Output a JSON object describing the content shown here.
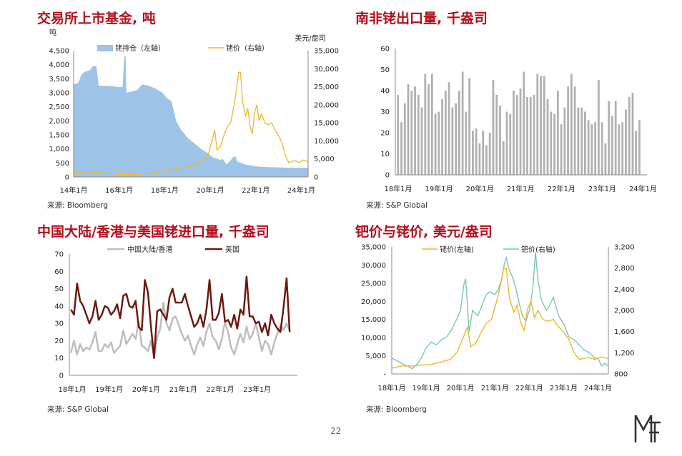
{
  "page_number": "22",
  "panels": {
    "p1": {
      "title": "交易所上市基金, 吨",
      "source": "来源: Bloomberg"
    },
    "p2": {
      "title": "南非铑出口量, 千盎司",
      "source": "来源: S&P Global"
    },
    "p3": {
      "title": "中国大陆/香港与美国铑进口量, 千盎司",
      "source": "来源: S&P Global"
    },
    "p4": {
      "title": "钯价与铑价, 美元/盎司",
      "source": "来源: Bloomberg"
    }
  },
  "chart_data": [
    {
      "type": "area+line",
      "left_unit": "吨",
      "right_unit": "美元/盘司",
      "left_ticks": [
        "0",
        "500",
        "1,000",
        "1,500",
        "2,000",
        "2,500",
        "3,000",
        "3,500",
        "4,000",
        "4,500"
      ],
      "right_ticks": [
        "0",
        "5,000",
        "10,000",
        "15,000",
        "20,000",
        "25,000",
        "30,000",
        "35,000"
      ],
      "x_ticks": [
        "14年1月",
        "16年1月",
        "18年1月",
        "20年1月",
        "22年1月",
        "24年1月"
      ],
      "ylim_left": [
        0,
        4500
      ],
      "ylim_right": [
        0,
        35000
      ],
      "xlim": [
        2014.0,
        2024.3
      ],
      "series": [
        {
          "name": "铑持仓（左轴）",
          "axis": "left",
          "color": "#9dc3e6",
          "points": [
            [
              2014.0,
              3300
            ],
            [
              2014.2,
              3350
            ],
            [
              2014.35,
              3650
            ],
            [
              2014.5,
              3750
            ],
            [
              2014.7,
              3800
            ],
            [
              2014.85,
              3950
            ],
            [
              2015.0,
              3950
            ],
            [
              2015.1,
              3250
            ],
            [
              2015.5,
              3250
            ],
            [
              2016.0,
              3200
            ],
            [
              2016.15,
              3200
            ],
            [
              2016.22,
              4300
            ],
            [
              2016.28,
              4300
            ],
            [
              2016.32,
              3000
            ],
            [
              2016.6,
              3050
            ],
            [
              2016.8,
              3100
            ],
            [
              2017.0,
              3300
            ],
            [
              2017.3,
              3250
            ],
            [
              2017.6,
              3150
            ],
            [
              2017.9,
              3000
            ],
            [
              2018.1,
              2800
            ],
            [
              2018.3,
              2700
            ],
            [
              2018.5,
              2000
            ],
            [
              2018.7,
              1700
            ],
            [
              2019.0,
              1400
            ],
            [
              2019.3,
              1200
            ],
            [
              2019.6,
              1000
            ],
            [
              2019.9,
              850
            ],
            [
              2020.1,
              700
            ],
            [
              2020.3,
              650
            ],
            [
              2020.45,
              600
            ],
            [
              2020.55,
              650
            ],
            [
              2020.7,
              450
            ],
            [
              2020.85,
              550
            ],
            [
              2021.0,
              700
            ],
            [
              2021.1,
              750
            ],
            [
              2021.2,
              550
            ],
            [
              2021.5,
              450
            ],
            [
              2022.0,
              380
            ],
            [
              2022.5,
              350
            ],
            [
              2023.0,
              340
            ],
            [
              2023.5,
              330
            ],
            [
              2024.3,
              320
            ]
          ]
        },
        {
          "name": "铑价（右轴）",
          "axis": "right",
          "color": "#f0b62c",
          "points": [
            [
              2014.0,
              1200
            ],
            [
              2014.5,
              1450
            ],
            [
              2015.0,
              1300
            ],
            [
              2015.5,
              1000
            ],
            [
              2016.0,
              700
            ],
            [
              2016.5,
              650
            ],
            [
              2017.0,
              850
            ],
            [
              2017.5,
              1100
            ],
            [
              2018.0,
              1700
            ],
            [
              2018.5,
              2300
            ],
            [
              2019.0,
              2700
            ],
            [
              2019.5,
              3800
            ],
            [
              2019.9,
              6000
            ],
            [
              2020.1,
              10500
            ],
            [
              2020.2,
              13000
            ],
            [
              2020.3,
              7500
            ],
            [
              2020.45,
              8500
            ],
            [
              2020.6,
              11500
            ],
            [
              2020.75,
              14000
            ],
            [
              2020.9,
              15000
            ],
            [
              2021.05,
              20000
            ],
            [
              2021.15,
              24000
            ],
            [
              2021.25,
              29000
            ],
            [
              2021.33,
              29000
            ],
            [
              2021.42,
              21000
            ],
            [
              2021.55,
              17000
            ],
            [
              2021.65,
              19000
            ],
            [
              2021.75,
              14000
            ],
            [
              2021.85,
              12000
            ],
            [
              2021.95,
              18000
            ],
            [
              2022.05,
              20000
            ],
            [
              2022.15,
              15500
            ],
            [
              2022.25,
              17500
            ],
            [
              2022.4,
              15000
            ],
            [
              2022.55,
              14500
            ],
            [
              2022.7,
              15000
            ],
            [
              2022.85,
              13000
            ],
            [
              2023.0,
              11500
            ],
            [
              2023.15,
              9500
            ],
            [
              2023.3,
              6000
            ],
            [
              2023.45,
              4000
            ],
            [
              2023.6,
              4300
            ],
            [
              2023.75,
              4500
            ],
            [
              2023.9,
              4000
            ],
            [
              2024.1,
              4700
            ],
            [
              2024.3,
              4200
            ]
          ]
        }
      ]
    },
    {
      "type": "bar",
      "x_ticks": [
        "18年1月",
        "19年1月",
        "20年1月",
        "21年1月",
        "22年1月",
        "23年1月",
        "24年1月"
      ],
      "y_ticks": [
        "0",
        "10",
        "20",
        "30",
        "40",
        "50",
        "60"
      ],
      "ylim": [
        0,
        60
      ],
      "start": "2018-01",
      "color": "#b0b0b0",
      "values": [
        38,
        25,
        34,
        43,
        40,
        42,
        38,
        32,
        48,
        43,
        48,
        29,
        30,
        36,
        40,
        44,
        32,
        34,
        40,
        49,
        30,
        46,
        21,
        22,
        15,
        21,
        14,
        20,
        45,
        38,
        33,
        16,
        30,
        29,
        40,
        38,
        41,
        49,
        37,
        37,
        38,
        48,
        47,
        47,
        36,
        30,
        29,
        40,
        24,
        32,
        42,
        48,
        42,
        32,
        32,
        30,
        26,
        24,
        25,
        45,
        25,
        15,
        35,
        28,
        35,
        24,
        25,
        31,
        37,
        39,
        21,
        26
      ]
    },
    {
      "type": "line",
      "x_ticks": [
        "18年1月",
        "19年1月",
        "20年1月",
        "21年1月",
        "22年1月",
        "23年1月"
      ],
      "y_ticks": [
        "0",
        "10",
        "20",
        "30",
        "40",
        "50",
        "60",
        "70"
      ],
      "ylim": [
        0,
        70
      ],
      "start": "2018-01",
      "series": [
        {
          "name": "中国大陆/香港",
          "color": "#bdbdbd",
          "values": [
            13,
            20,
            12,
            18,
            14,
            16,
            15,
            19,
            25,
            14,
            14,
            18,
            16,
            19,
            13,
            15,
            17,
            26,
            18,
            21,
            24,
            21,
            31,
            17,
            16,
            14,
            20,
            10,
            22,
            27,
            42,
            30,
            26,
            33,
            34,
            29,
            24,
            20,
            23,
            17,
            12,
            18,
            22,
            17,
            25,
            30,
            22,
            20,
            15,
            21,
            31,
            25,
            16,
            12,
            18,
            24,
            19,
            28,
            21,
            24,
            30,
            22,
            14,
            20,
            18,
            12,
            19,
            24,
            29,
            26,
            30,
            26
          ]
        },
        {
          "name": "美国",
          "color": "#6b1a12",
          "values": [
            38,
            35,
            53,
            43,
            40,
            35,
            30,
            34,
            43,
            32,
            35,
            40,
            39,
            35,
            37,
            41,
            33,
            46,
            47,
            40,
            39,
            43,
            28,
            26,
            55,
            48,
            28,
            10,
            37,
            38,
            35,
            32,
            45,
            50,
            42,
            42,
            42,
            47,
            40,
            34,
            28,
            30,
            35,
            28,
            38,
            55,
            32,
            32,
            36,
            47,
            31,
            32,
            28,
            35,
            27,
            38,
            35,
            57,
            34,
            34,
            30,
            31,
            25,
            30,
            23,
            35,
            30,
            27,
            25,
            39,
            56,
            25
          ]
        }
      ]
    },
    {
      "type": "line",
      "left_ticks": [
        "-",
        "5,000",
        "10,000",
        "15,000",
        "20,000",
        "25,000",
        "30,000",
        "35,000"
      ],
      "right_ticks": [
        "800",
        "1,200",
        "1,600",
        "2,000",
        "2,400",
        "2,800",
        "3,200"
      ],
      "x_ticks": [
        "18年1月",
        "19年1月",
        "20年1月",
        "21年1月",
        "22年1月",
        "23年1月",
        "24年1月"
      ],
      "ylim_left": [
        0,
        35000
      ],
      "ylim_right": [
        800,
        3200
      ],
      "xlim": [
        2018.0,
        2024.3
      ],
      "series": [
        {
          "name": "铑价(左轴)",
          "axis": "left",
          "color": "#f0b62c",
          "points": [
            [
              2018.0,
              1600
            ],
            [
              2018.3,
              2200
            ],
            [
              2018.6,
              2200
            ],
            [
              2018.9,
              2500
            ],
            [
              2019.1,
              2500
            ],
            [
              2019.4,
              3200
            ],
            [
              2019.7,
              4000
            ],
            [
              2019.9,
              6000
            ],
            [
              2020.1,
              10500
            ],
            [
              2020.2,
              13000
            ],
            [
              2020.3,
              7500
            ],
            [
              2020.45,
              8500
            ],
            [
              2020.6,
              11500
            ],
            [
              2020.75,
              14000
            ],
            [
              2020.9,
              15000
            ],
            [
              2021.05,
              20000
            ],
            [
              2021.15,
              24000
            ],
            [
              2021.25,
              29000
            ],
            [
              2021.33,
              29000
            ],
            [
              2021.42,
              21000
            ],
            [
              2021.55,
              17000
            ],
            [
              2021.65,
              19000
            ],
            [
              2021.75,
              14000
            ],
            [
              2021.85,
              12000
            ],
            [
              2021.95,
              18000
            ],
            [
              2022.05,
              20000
            ],
            [
              2022.15,
              15500
            ],
            [
              2022.25,
              17500
            ],
            [
              2022.4,
              15000
            ],
            [
              2022.55,
              14500
            ],
            [
              2022.7,
              15000
            ],
            [
              2022.85,
              13000
            ],
            [
              2023.0,
              11500
            ],
            [
              2023.15,
              9500
            ],
            [
              2023.3,
              6000
            ],
            [
              2023.45,
              4000
            ],
            [
              2023.6,
              4300
            ],
            [
              2023.75,
              4500
            ],
            [
              2023.9,
              4000
            ],
            [
              2024.1,
              4700
            ],
            [
              2024.3,
              4200
            ]
          ]
        },
        {
          "name": "钯价(右轴)",
          "axis": "right",
          "color": "#7cc6b0",
          "points": [
            [
              2018.0,
              1100
            ],
            [
              2018.15,
              1050
            ],
            [
              2018.3,
              1000
            ],
            [
              2018.45,
              950
            ],
            [
              2018.6,
              900
            ],
            [
              2018.75,
              1000
            ],
            [
              2018.9,
              1150
            ],
            [
              2019.0,
              1300
            ],
            [
              2019.15,
              1400
            ],
            [
              2019.3,
              1350
            ],
            [
              2019.45,
              1450
            ],
            [
              2019.6,
              1500
            ],
            [
              2019.75,
              1650
            ],
            [
              2019.9,
              1850
            ],
            [
              2020.0,
              2000
            ],
            [
              2020.1,
              2500
            ],
            [
              2020.15,
              2600
            ],
            [
              2020.25,
              1600
            ],
            [
              2020.35,
              2000
            ],
            [
              2020.5,
              1900
            ],
            [
              2020.6,
              2050
            ],
            [
              2020.75,
              2300
            ],
            [
              2020.85,
              2350
            ],
            [
              2021.0,
              2300
            ],
            [
              2021.1,
              2400
            ],
            [
              2021.2,
              2600
            ],
            [
              2021.28,
              2900
            ],
            [
              2021.33,
              3000
            ],
            [
              2021.4,
              2800
            ],
            [
              2021.5,
              2650
            ],
            [
              2021.6,
              2450
            ],
            [
              2021.7,
              2150
            ],
            [
              2021.8,
              1900
            ],
            [
              2021.9,
              1800
            ],
            [
              2022.0,
              2000
            ],
            [
              2022.1,
              2400
            ],
            [
              2022.18,
              3100
            ],
            [
              2022.25,
              2600
            ],
            [
              2022.35,
              2200
            ],
            [
              2022.5,
              2000
            ],
            [
              2022.6,
              2100
            ],
            [
              2022.7,
              2250
            ],
            [
              2022.85,
              1900
            ],
            [
              2023.0,
              1750
            ],
            [
              2023.15,
              1500
            ],
            [
              2023.3,
              1450
            ],
            [
              2023.45,
              1350
            ],
            [
              2023.6,
              1250
            ],
            [
              2023.75,
              1200
            ],
            [
              2023.9,
              1100
            ],
            [
              2024.0,
              1100
            ],
            [
              2024.1,
              950
            ],
            [
              2024.2,
              1000
            ],
            [
              2024.3,
              950
            ]
          ]
        }
      ]
    }
  ]
}
